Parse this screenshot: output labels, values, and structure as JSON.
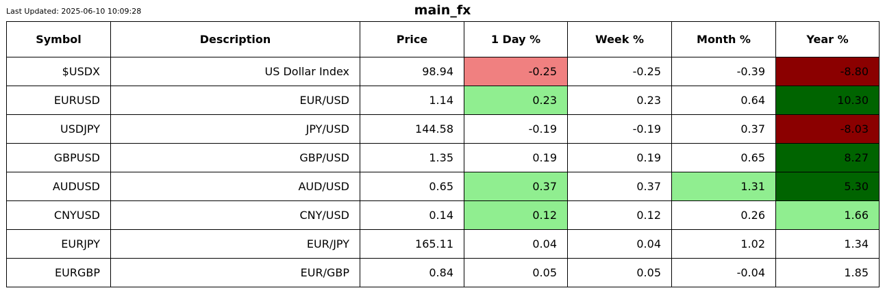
{
  "header": {
    "last_updated": "Last Updated: 2025-06-10 10:09:28",
    "title": "main_fx"
  },
  "colors": {
    "strong_negative": "#8b0000",
    "mild_negative": "#f08080",
    "strong_positive": "#006400",
    "mild_positive": "#90ee90",
    "neutral": "#ffffff"
  },
  "chart_data": {
    "type": "table",
    "title": "main_fx",
    "columns": [
      "Symbol",
      "Description",
      "Price",
      "1 Day %",
      "Week %",
      "Month %",
      "Year %"
    ],
    "rows": [
      {
        "symbol": "$USDX",
        "description": "US Dollar Index",
        "price": "98.94",
        "day": "-0.25",
        "week": "-0.25",
        "month": "-0.39",
        "year": "-8.80",
        "colors": {
          "day": "mild_negative",
          "week": "neutral",
          "month": "neutral",
          "year": "strong_negative"
        }
      },
      {
        "symbol": "EURUSD",
        "description": "EUR/USD",
        "price": "1.14",
        "day": "0.23",
        "week": "0.23",
        "month": "0.64",
        "year": "10.30",
        "colors": {
          "day": "mild_positive",
          "week": "neutral",
          "month": "neutral",
          "year": "strong_positive"
        }
      },
      {
        "symbol": "USDJPY",
        "description": "JPY/USD",
        "price": "144.58",
        "day": "-0.19",
        "week": "-0.19",
        "month": "0.37",
        "year": "-8.03",
        "colors": {
          "day": "neutral",
          "week": "neutral",
          "month": "neutral",
          "year": "strong_negative"
        }
      },
      {
        "symbol": "GBPUSD",
        "description": "GBP/USD",
        "price": "1.35",
        "day": "0.19",
        "week": "0.19",
        "month": "0.65",
        "year": "8.27",
        "colors": {
          "day": "neutral",
          "week": "neutral",
          "month": "neutral",
          "year": "strong_positive"
        }
      },
      {
        "symbol": "AUDUSD",
        "description": "AUD/USD",
        "price": "0.65",
        "day": "0.37",
        "week": "0.37",
        "month": "1.31",
        "year": "5.30",
        "colors": {
          "day": "mild_positive",
          "week": "neutral",
          "month": "mild_positive",
          "year": "strong_positive"
        }
      },
      {
        "symbol": "CNYUSD",
        "description": "CNY/USD",
        "price": "0.14",
        "day": "0.12",
        "week": "0.12",
        "month": "0.26",
        "year": "1.66",
        "colors": {
          "day": "mild_positive",
          "week": "neutral",
          "month": "neutral",
          "year": "mild_positive"
        }
      },
      {
        "symbol": "EURJPY",
        "description": "EUR/JPY",
        "price": "165.11",
        "day": "0.04",
        "week": "0.04",
        "month": "1.02",
        "year": "1.34",
        "colors": {
          "day": "neutral",
          "week": "neutral",
          "month": "neutral",
          "year": "neutral"
        }
      },
      {
        "symbol": "EURGBP",
        "description": "EUR/GBP",
        "price": "0.84",
        "day": "0.05",
        "week": "0.05",
        "month": "-0.04",
        "year": "1.85",
        "colors": {
          "day": "neutral",
          "week": "neutral",
          "month": "neutral",
          "year": "neutral"
        }
      }
    ]
  }
}
